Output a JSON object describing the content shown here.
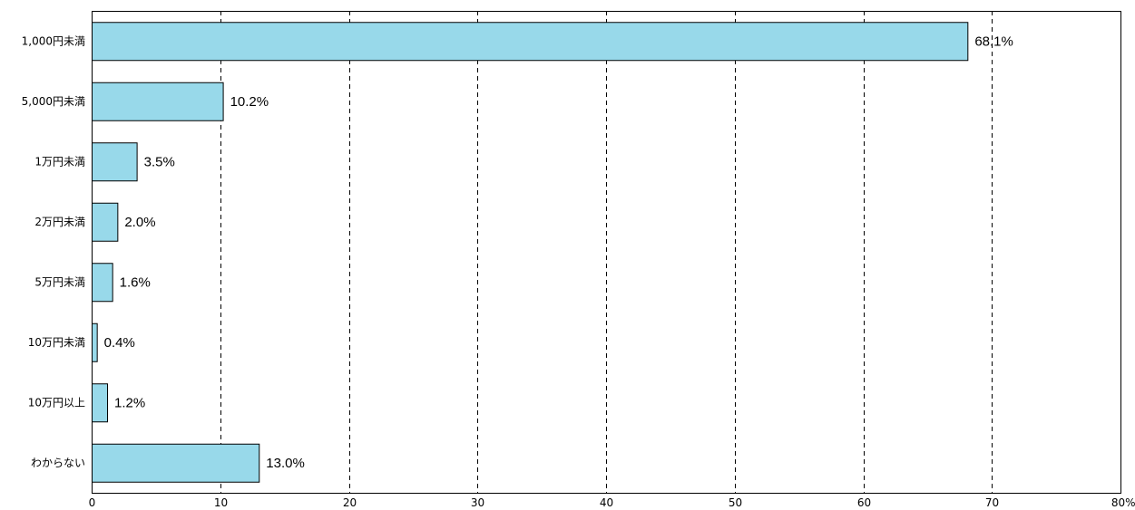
{
  "chart_data": {
    "type": "bar",
    "orientation": "horizontal",
    "categories": [
      "1,000円未満",
      "5,000円未満",
      "1万円未満",
      "2万円未満",
      "5万円未満",
      "10万円未満",
      "10万円以上",
      "わからない"
    ],
    "values": [
      68.1,
      10.2,
      3.5,
      2.0,
      1.6,
      0.4,
      1.2,
      13.0
    ],
    "data_labels": [
      "68.1%",
      "10.2%",
      "3.5%",
      "2.0%",
      "1.6%",
      "0.4%",
      "1.2%",
      "13.0%"
    ],
    "x_ticks": [
      "0",
      "10",
      "20",
      "30",
      "40",
      "50",
      "60",
      "70",
      "80%"
    ],
    "xlim": [
      0,
      80
    ],
    "grid": "vertical dashed",
    "legend": "none",
    "colors": {
      "bar": "#98d9ea",
      "bar_border": "#000000",
      "grid": "#000000"
    }
  }
}
